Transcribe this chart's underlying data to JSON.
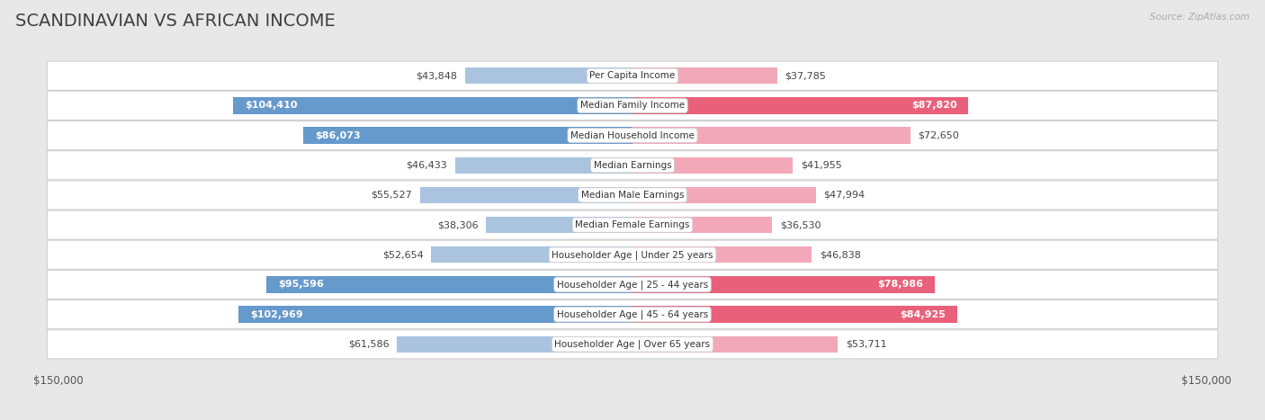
{
  "title": "SCANDINAVIAN VS AFRICAN INCOME",
  "source": "Source: ZipAtlas.com",
  "max_val": 150000,
  "categories": [
    "Per Capita Income",
    "Median Family Income",
    "Median Household Income",
    "Median Earnings",
    "Median Male Earnings",
    "Median Female Earnings",
    "Householder Age | Under 25 years",
    "Householder Age | 25 - 44 years",
    "Householder Age | 45 - 64 years",
    "Householder Age | Over 65 years"
  ],
  "scandinavian": [
    43848,
    104410,
    86073,
    46433,
    55527,
    38306,
    52654,
    95596,
    102969,
    61586
  ],
  "african": [
    37785,
    87820,
    72650,
    41955,
    47994,
    36530,
    46838,
    78986,
    84925,
    53711
  ],
  "scand_labels": [
    "$43,848",
    "$104,410",
    "$86,073",
    "$46,433",
    "$55,527",
    "$38,306",
    "$52,654",
    "$95,596",
    "$102,969",
    "$61,586"
  ],
  "african_labels": [
    "$37,785",
    "$87,820",
    "$72,650",
    "$41,955",
    "$47,994",
    "$36,530",
    "$46,838",
    "$78,986",
    "$84,925",
    "$53,711"
  ],
  "scand_color_dark": "#6699cc",
  "scand_color_light": "#aac4e0",
  "african_color_dark": "#e8607a",
  "african_color_light": "#f2a8b8",
  "bg_color": "#ffffff",
  "outer_bg": "#e8e8e8",
  "row_bg": "#f0f0f0",
  "label_fontsize": 8.0,
  "title_fontsize": 14,
  "category_fontsize": 7.5,
  "legend_fontsize": 9,
  "scand_dark_threshold": 75000,
  "african_dark_threshold": 75000
}
